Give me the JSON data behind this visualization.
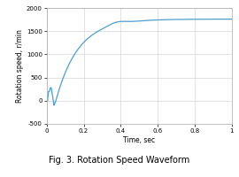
{
  "title": "Fig. 3. Rotation Speed Waveform",
  "xlabel": "Time, sec",
  "ylabel": "Rotation speed, r/min",
  "xlim": [
    0,
    1.0
  ],
  "ylim": [
    -500,
    2000
  ],
  "yticks": [
    -500,
    0,
    500,
    1000,
    1500,
    2000
  ],
  "xticks": [
    0,
    0.2,
    0.4,
    0.6,
    0.8,
    1.0
  ],
  "line_color": "#4e9ecf",
  "background_color": "#ffffff",
  "grid_color": "#cccccc",
  "steady_state": 1760,
  "time_constant": 0.12,
  "initial_dip": -100,
  "overshoot": 50,
  "overshoot_time": 0.38
}
